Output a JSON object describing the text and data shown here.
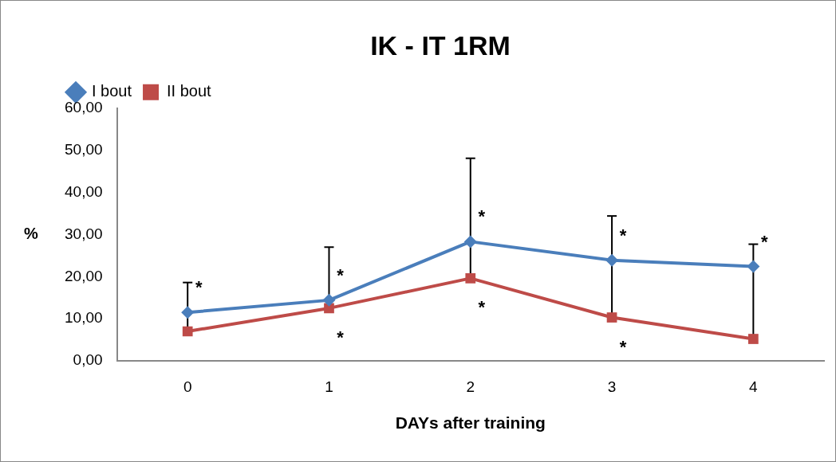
{
  "chart_data": {
    "type": "line",
    "title": "IK - IT 1RM",
    "xlabel": "DAYs after training",
    "ylabel": "%",
    "categories": [
      "0",
      "1",
      "2",
      "3",
      "4"
    ],
    "series": [
      {
        "name": "I bout",
        "color": "#4a7ebb",
        "marker": "diamond",
        "values": [
          11.5,
          14.4,
          28.3,
          23.9,
          22.4
        ]
      },
      {
        "name": "II bout",
        "color": "#be4b48",
        "marker": "square",
        "values": [
          7.0,
          12.5,
          19.6,
          10.3,
          5.2
        ],
        "errors": [
          [
            7.0,
            18.6
          ],
          [
            12.5,
            27.0
          ],
          [
            19.6,
            48.1
          ],
          [
            10.3,
            34.4
          ],
          [
            5.2,
            27.7
          ]
        ]
      }
    ],
    "ylim": [
      0,
      60
    ],
    "yticks": [
      {
        "value": 0,
        "label": "0,00"
      },
      {
        "value": 10,
        "label": "10,00"
      },
      {
        "value": 20,
        "label": "20,00"
      },
      {
        "value": 30,
        "label": "30,00"
      },
      {
        "value": 40,
        "label": "40,00"
      },
      {
        "value": 50,
        "label": "50,00"
      },
      {
        "value": 60,
        "label": "60,00"
      }
    ],
    "grid": false,
    "legend": "top left",
    "annotations": [
      {
        "text": "*",
        "x": "0",
        "y": 11.5
      },
      {
        "text": "*",
        "x": "1",
        "y": 14.4
      },
      {
        "text": "*",
        "x": "1",
        "y": 12.5
      },
      {
        "text": "*",
        "x": "2",
        "y": 28.3
      },
      {
        "text": "*",
        "x": "2",
        "y": 19.6
      },
      {
        "text": "*",
        "x": "3",
        "y": 23.9
      },
      {
        "text": "*",
        "x": "3",
        "y": 10.3
      },
      {
        "text": "*",
        "x": "4",
        "y": 22.4
      }
    ]
  }
}
